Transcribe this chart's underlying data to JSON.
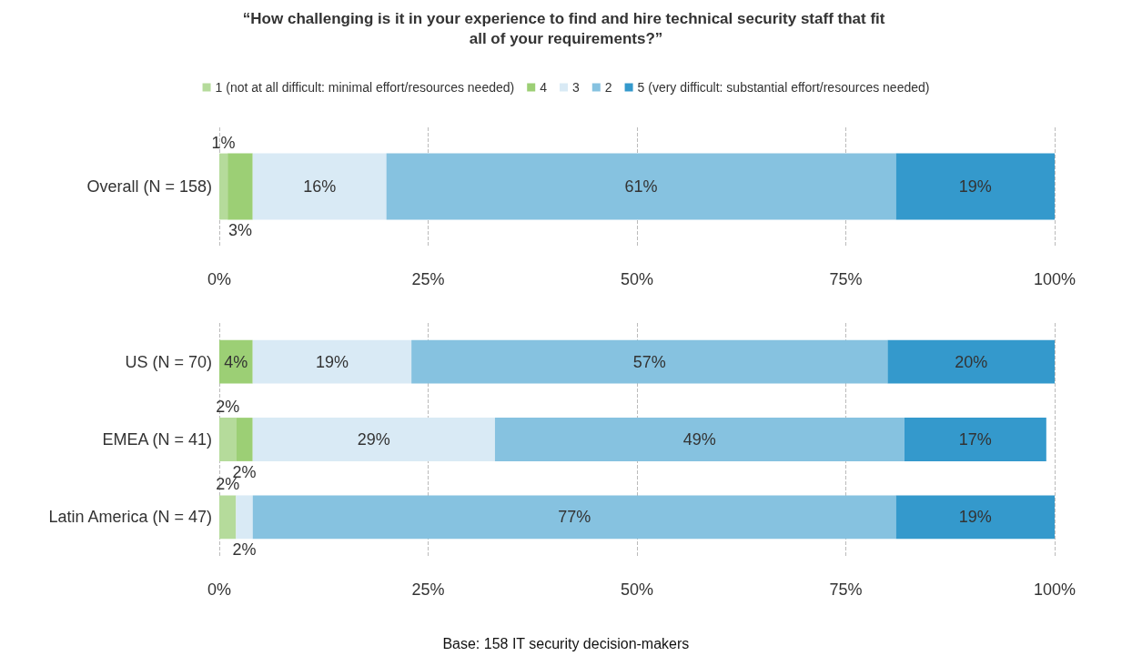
{
  "chart_data": [
    {
      "type": "bar",
      "title": "“How challenging is it in your experience to find and hire technical security staff that fit all of your requirements?”",
      "orientation": "horizontal",
      "stacked": true,
      "legend": "top",
      "grid": "x",
      "categories": [
        "Overall (N = 158)"
      ],
      "series": [
        {
          "name": "1 (not at all difficult: minimal effort/resources needed)",
          "color": "#b5db9b",
          "values": [
            1
          ],
          "value_labels": [
            "1%"
          ]
        },
        {
          "name": "4",
          "color": "#9ccf75",
          "values": [
            3
          ],
          "value_labels": [
            "3%"
          ]
        },
        {
          "name": "3",
          "color": "#d9eaf5",
          "values": [
            16
          ],
          "value_labels": [
            "16%"
          ]
        },
        {
          "name": "2",
          "color": "#86c2e0",
          "values": [
            61
          ],
          "value_labels": [
            "61%"
          ]
        },
        {
          "name": "5 (very difficult: substantial effort/resources needed)",
          "color": "#3499cc",
          "values": [
            19
          ],
          "value_labels": [
            "19%"
          ]
        }
      ],
      "xlim": [
        0,
        100
      ],
      "xticks": [
        {
          "value": 0,
          "label": "0%"
        },
        {
          "value": 25,
          "label": "25%"
        },
        {
          "value": 50,
          "label": "50%"
        },
        {
          "value": 75,
          "label": "75%"
        },
        {
          "value": 100,
          "label": "100%"
        }
      ]
    },
    {
      "type": "bar",
      "orientation": "horizontal",
      "stacked": true,
      "grid": "x",
      "categories": [
        "US (N = 70)",
        "EMEA (N = 41)",
        "Latin America (N = 47)"
      ],
      "series": [
        {
          "color": "#b5db9b",
          "values": [
            null,
            2,
            2
          ],
          "value_labels": [
            null,
            "2%",
            "2%"
          ]
        },
        {
          "color": "#9ccf75",
          "values": [
            4,
            2,
            null
          ],
          "value_labels": [
            "4%",
            "2%",
            null
          ]
        },
        {
          "color": "#d9eaf5",
          "values": [
            19,
            29,
            2
          ],
          "value_labels": [
            "19%",
            "29%",
            "2%"
          ]
        },
        {
          "color": "#86c2e0",
          "values": [
            57,
            49,
            77
          ],
          "value_labels": [
            "57%",
            "49%",
            "77%"
          ]
        },
        {
          "color": "#3499cc",
          "values": [
            20,
            17,
            19
          ],
          "value_labels": [
            "20%",
            "17%",
            "19%"
          ]
        }
      ],
      "xlim": [
        0,
        100
      ],
      "xticks": [
        {
          "value": 0,
          "label": "0%"
        },
        {
          "value": 25,
          "label": "25%"
        },
        {
          "value": 50,
          "label": "50%"
        },
        {
          "value": 75,
          "label": "75%"
        },
        {
          "value": 100,
          "label": "100%"
        }
      ],
      "annotations": [
        "Base: 158 IT security decision-makers"
      ]
    }
  ]
}
